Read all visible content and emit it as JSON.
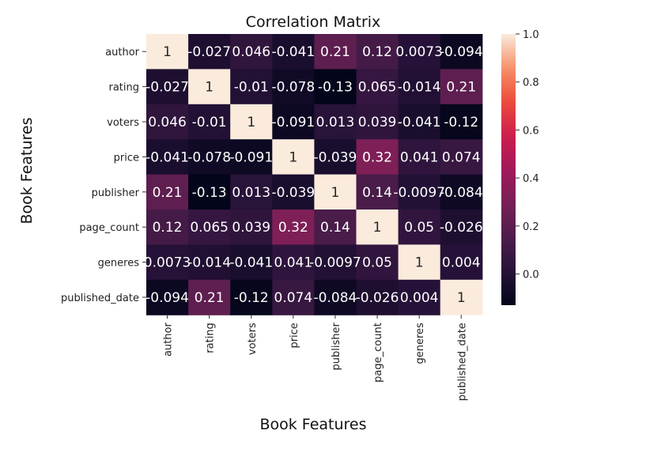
{
  "chart_data": {
    "type": "heatmap",
    "title": "Correlation Matrix",
    "xlabel": "Book Features",
    "ylabel": "Book Features",
    "rows": [
      "author",
      "rating",
      "voters",
      "price",
      "publisher",
      "page_count",
      "generes",
      "published_date"
    ],
    "cols": [
      "author",
      "rating",
      "voters",
      "price",
      "publisher",
      "page_count",
      "generes",
      "published_date"
    ],
    "values": [
      [
        1,
        -0.027,
        0.046,
        -0.041,
        0.21,
        0.12,
        0.0073,
        -0.094
      ],
      [
        -0.027,
        1,
        -0.01,
        -0.078,
        -0.13,
        0.065,
        -0.014,
        0.21
      ],
      [
        0.046,
        -0.01,
        1,
        -0.091,
        0.013,
        0.039,
        -0.041,
        -0.12
      ],
      [
        -0.041,
        -0.078,
        -0.091,
        1,
        -0.039,
        0.32,
        0.041,
        0.074
      ],
      [
        0.21,
        -0.13,
        0.013,
        -0.039,
        1,
        0.14,
        -0.0097,
        -0.084
      ],
      [
        0.12,
        0.065,
        0.039,
        0.32,
        0.14,
        1,
        0.05,
        -0.026
      ],
      [
        0.0073,
        -0.014,
        -0.041,
        0.041,
        -0.0097,
        0.05,
        1,
        0.004
      ],
      [
        -0.094,
        0.21,
        -0.12,
        0.074,
        -0.084,
        -0.026,
        0.004,
        1
      ]
    ],
    "annotations": [
      [
        "1",
        "-0.027",
        "0.046",
        "-0.041",
        "0.21",
        "0.12",
        "0.0073",
        "-0.094"
      ],
      [
        "-0.027",
        "1",
        "-0.01",
        "-0.078",
        "-0.13",
        "0.065",
        "-0.014",
        "0.21"
      ],
      [
        "0.046",
        "-0.01",
        "1",
        "-0.091",
        "0.013",
        "0.039",
        "-0.041",
        "-0.12"
      ],
      [
        "-0.041",
        "-0.078",
        "-0.091",
        "1",
        "-0.039",
        "0.32",
        "0.041",
        "0.074"
      ],
      [
        "0.21",
        "-0.13",
        "0.013",
        "-0.039",
        "1",
        "0.14",
        "-0.0097",
        "-0.084"
      ],
      [
        "0.12",
        "0.065",
        "0.039",
        "0.32",
        "0.14",
        "1",
        "0.05",
        "-0.026"
      ],
      [
        "0.0073",
        "-0.014",
        "-0.041",
        "0.041",
        "-0.0097",
        "0.05",
        "1",
        "0.004"
      ],
      [
        "-0.094",
        "0.21",
        "-0.12",
        "0.074",
        "-0.084",
        "-0.026",
        "0.004",
        "1"
      ]
    ],
    "colorbar": {
      "range": [
        -0.13,
        1.0
      ],
      "ticks": [
        1.0,
        0.8,
        0.6,
        0.4,
        0.2,
        0.0
      ],
      "tick_labels": [
        "1.0",
        "0.8",
        "0.6",
        "0.4",
        "0.2",
        "0.0"
      ],
      "colormap": "rocket"
    },
    "grid": false
  }
}
